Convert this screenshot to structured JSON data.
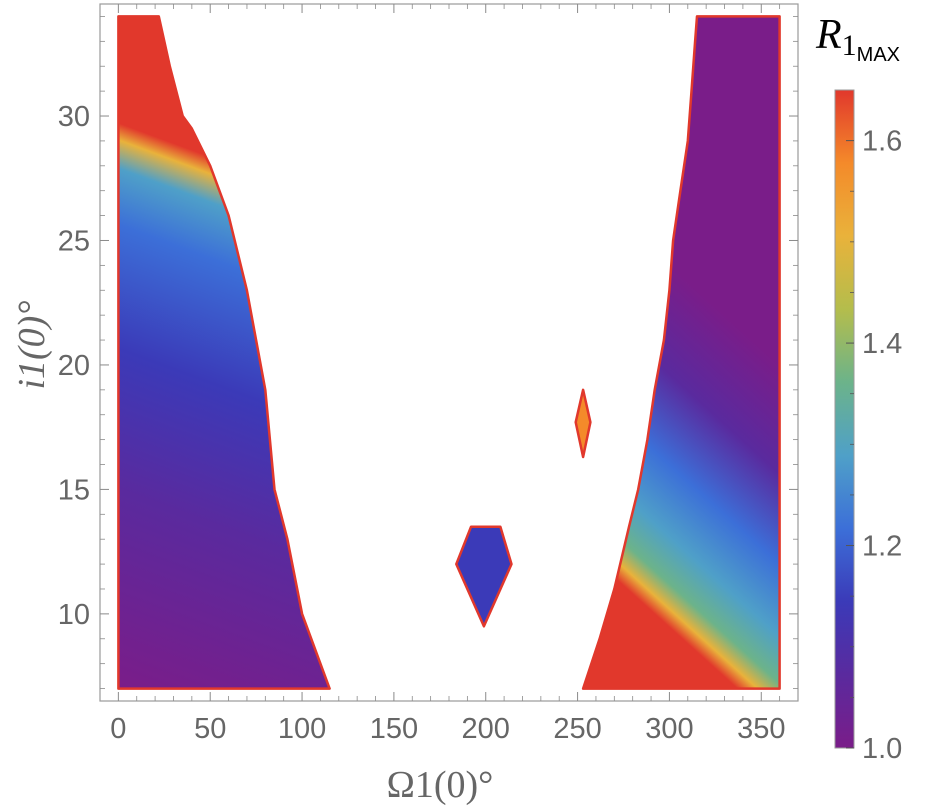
{
  "chart_data": {
    "type": "heatmap",
    "xlabel": "Ω1(0)°",
    "ylabel": "i1(0)°",
    "xlim": [
      -10,
      370
    ],
    "ylim": [
      6.5,
      34.5
    ],
    "data_extent": {
      "x": [
        0,
        360
      ],
      "y": [
        7,
        34
      ]
    },
    "xticks": [
      0,
      50,
      100,
      150,
      200,
      250,
      300,
      350
    ],
    "yticks": [
      10,
      15,
      20,
      25,
      30
    ],
    "colorbar": {
      "title": "R",
      "subscript": "1",
      "sub_subscript": "MAX",
      "range": [
        1.0,
        1.65
      ],
      "ticks": [
        1.0,
        1.2,
        1.4,
        1.6
      ],
      "tick_labels": [
        "1.0",
        "1.2",
        "1.4",
        "1.6"
      ]
    },
    "palette": [
      "#7a1d89",
      "#5a2a9e",
      "#3b3ab8",
      "#3c6fd8",
      "#4fa0c8",
      "#6cb38a",
      "#b4bd4c",
      "#e9b23b",
      "#f48a2a",
      "#e1382c"
    ],
    "regions": [
      {
        "name": "left region",
        "boundary": [
          [
            0,
            34
          ],
          [
            22,
            34
          ],
          [
            28,
            32
          ],
          [
            35,
            30
          ],
          [
            40,
            29.5
          ],
          [
            50,
            28
          ],
          [
            60,
            26
          ],
          [
            70,
            23
          ],
          [
            80,
            19
          ],
          [
            85,
            15
          ],
          [
            92,
            13
          ],
          [
            100,
            10
          ],
          [
            115,
            7
          ],
          [
            0,
            7
          ]
        ],
        "value_at_edge": 1.65,
        "value_interior": 1.0
      },
      {
        "name": "right region",
        "boundary": [
          [
            315,
            34
          ],
          [
            360,
            34
          ],
          [
            360,
            7
          ],
          [
            253,
            7
          ],
          [
            262,
            9
          ],
          [
            270,
            11
          ],
          [
            278,
            13.5
          ],
          [
            283,
            15
          ],
          [
            288,
            17
          ],
          [
            292,
            19
          ],
          [
            297,
            21
          ],
          [
            300,
            23
          ],
          [
            302,
            25
          ],
          [
            306,
            27
          ],
          [
            310,
            29
          ],
          [
            312,
            31
          ],
          [
            314,
            33
          ]
        ],
        "value_at_edge": 1.65,
        "value_interior": 1.0
      },
      {
        "name": "lower island",
        "boundary": [
          [
            192,
            13.5
          ],
          [
            208,
            13.5
          ],
          [
            214,
            12
          ],
          [
            199,
            9.5
          ],
          [
            184,
            12
          ]
        ],
        "value_at_edge": 1.65,
        "value_interior": 1.15
      },
      {
        "name": "upper island",
        "boundary": [
          [
            253,
            19
          ],
          [
            257,
            17.7
          ],
          [
            253,
            16.3
          ],
          [
            249,
            17.7
          ]
        ],
        "value_at_edge": 1.65,
        "value_interior": 1.6
      }
    ]
  }
}
